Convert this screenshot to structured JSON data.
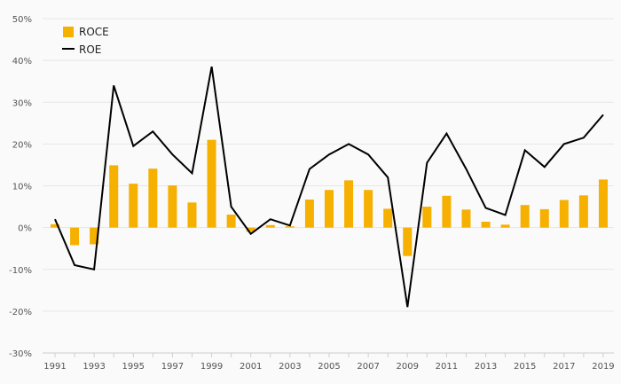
{
  "chart_data": {
    "type": "bar+line",
    "x": [
      "1991",
      "1992",
      "1993",
      "1994",
      "1995",
      "1996",
      "1997",
      "1998",
      "1999",
      "2000",
      "2001",
      "2002",
      "2003",
      "2004",
      "2005",
      "2006",
      "2007",
      "2008",
      "2009",
      "2010",
      "2011",
      "2012",
      "2013",
      "2014",
      "2015",
      "2016",
      "2017",
      "2018",
      "2019"
    ],
    "x_tick_labels": [
      "1991",
      "1993",
      "1995",
      "1997",
      "1999",
      "2001",
      "2003",
      "2005",
      "2007",
      "2009",
      "2011",
      "2013",
      "2015",
      "2017",
      "2019"
    ],
    "y_tick_labels": [
      "50%",
      "40%",
      "30%",
      "20%",
      "10%",
      "0%",
      "-10%",
      "-20%",
      "-30%"
    ],
    "ylim": [
      -30,
      50
    ],
    "y_ticks": [
      50,
      40,
      30,
      20,
      10,
      0,
      -10,
      -20,
      -30
    ],
    "grid": true,
    "legend_position": "top-left",
    "series": [
      {
        "name": "ROCE",
        "kind": "bar",
        "color": "#f5b000",
        "values": [
          0.8,
          -4.2,
          -4.0,
          14.9,
          10.5,
          14.1,
          10.1,
          6.0,
          21.0,
          3.1,
          -1.0,
          0.6,
          0.3,
          6.7,
          9.0,
          11.3,
          9.0,
          4.5,
          -6.8,
          5.0,
          7.6,
          4.3,
          1.4,
          0.7,
          5.4,
          4.4,
          6.6,
          7.7,
          11.5
        ]
      },
      {
        "name": "ROE",
        "kind": "line",
        "color": "#000000",
        "values": [
          2.0,
          -9.0,
          -10.0,
          34.0,
          19.5,
          23.0,
          17.5,
          13.0,
          38.5,
          5.0,
          -1.5,
          2.0,
          0.5,
          14.0,
          17.5,
          20.0,
          17.5,
          12.0,
          -19.0,
          15.5,
          22.5,
          14.0,
          4.7,
          3.0,
          18.5,
          14.5,
          20.0,
          21.5,
          27.0
        ]
      }
    ]
  }
}
